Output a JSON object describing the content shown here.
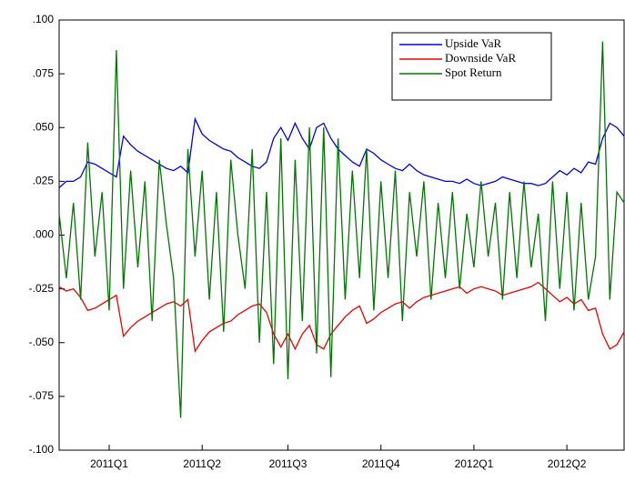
{
  "chart_data": {
    "type": "line",
    "legend": "upper right",
    "grid": false,
    "ylim": [
      -0.1,
      0.1
    ],
    "yticks": [
      {
        "value": -0.1,
        "label": "-.100"
      },
      {
        "value": -0.075,
        "label": "-.075"
      },
      {
        "value": -0.05,
        "label": "-.050"
      },
      {
        "value": -0.025,
        "label": "-.025"
      },
      {
        "value": 0,
        "label": ".000"
      },
      {
        "value": 0.025,
        "label": ".025"
      },
      {
        "value": 0.05,
        "label": ".050"
      },
      {
        "value": 0.075,
        "label": ".075"
      },
      {
        "value": 0.1,
        "label": ".100"
      }
    ],
    "categories": [
      null,
      null,
      null,
      null,
      null,
      null,
      null,
      "2011Q1",
      null,
      null,
      null,
      null,
      null,
      null,
      null,
      null,
      null,
      null,
      null,
      null,
      "2011Q2",
      null,
      null,
      null,
      null,
      null,
      null,
      null,
      null,
      null,
      null,
      null,
      "2011Q3",
      null,
      null,
      null,
      null,
      null,
      null,
      null,
      null,
      null,
      null,
      null,
      null,
      "2011Q4",
      null,
      null,
      null,
      null,
      null,
      null,
      null,
      null,
      null,
      null,
      null,
      null,
      "2012Q1",
      null,
      null,
      null,
      null,
      null,
      null,
      null,
      null,
      null,
      null,
      null,
      null,
      "2012Q2",
      null,
      null,
      null,
      null,
      null,
      null,
      null,
      null
    ],
    "series": [
      {
        "name": "Upside VaR",
        "color": "#0000ee",
        "values": [
          0.022,
          0.025,
          0.025,
          0.027,
          0.034,
          0.033,
          0.031,
          0.029,
          0.027,
          0.046,
          0.042,
          0.039,
          0.037,
          0.035,
          0.033,
          0.031,
          0.03,
          0.032,
          0.029,
          0.054,
          0.047,
          0.044,
          0.042,
          0.04,
          0.039,
          0.036,
          0.034,
          0.032,
          0.031,
          0.034,
          0.045,
          0.05,
          0.044,
          0.052,
          0.045,
          0.04,
          0.05,
          0.052,
          0.045,
          0.04,
          0.037,
          0.034,
          0.032,
          0.04,
          0.038,
          0.035,
          0.033,
          0.031,
          0.03,
          0.033,
          0.03,
          0.028,
          0.027,
          0.026,
          0.025,
          0.025,
          0.024,
          0.026,
          0.024,
          0.023,
          0.024,
          0.025,
          0.027,
          0.026,
          0.025,
          0.024,
          0.024,
          0.023,
          0.024,
          0.027,
          0.03,
          0.028,
          0.031,
          0.029,
          0.034,
          0.033,
          0.045,
          0.052,
          0.05,
          0.046
        ]
      },
      {
        "name": "Downside VaR",
        "color": "#ee0000",
        "values": [
          -0.024,
          -0.026,
          -0.025,
          -0.029,
          -0.035,
          -0.034,
          -0.032,
          -0.03,
          -0.028,
          -0.047,
          -0.043,
          -0.04,
          -0.038,
          -0.036,
          -0.034,
          -0.032,
          -0.031,
          -0.033,
          -0.03,
          -0.054,
          -0.049,
          -0.045,
          -0.043,
          -0.041,
          -0.04,
          -0.037,
          -0.035,
          -0.033,
          -0.032,
          -0.036,
          -0.046,
          -0.052,
          -0.046,
          -0.053,
          -0.046,
          -0.042,
          -0.051,
          -0.053,
          -0.046,
          -0.042,
          -0.038,
          -0.035,
          -0.033,
          -0.041,
          -0.039,
          -0.036,
          -0.034,
          -0.032,
          -0.031,
          -0.034,
          -0.031,
          -0.029,
          -0.028,
          -0.027,
          -0.026,
          -0.025,
          -0.024,
          -0.027,
          -0.025,
          -0.024,
          -0.025,
          -0.026,
          -0.028,
          -0.027,
          -0.026,
          -0.025,
          -0.024,
          -0.022,
          -0.025,
          -0.028,
          -0.031,
          -0.029,
          -0.032,
          -0.03,
          -0.035,
          -0.034,
          -0.046,
          -0.053,
          -0.051,
          -0.045
        ]
      },
      {
        "name": "Spot Return",
        "color": "#007700",
        "values": [
          0.01,
          -0.02,
          0.015,
          -0.03,
          0.043,
          -0.01,
          0.02,
          -0.035,
          0.086,
          -0.025,
          0.03,
          -0.015,
          0.025,
          -0.04,
          0.035,
          0.005,
          -0.02,
          -0.085,
          0.04,
          -0.01,
          0.03,
          -0.03,
          0.02,
          -0.045,
          0.035,
          0,
          -0.025,
          0.04,
          -0.05,
          0.02,
          -0.06,
          0.045,
          -0.067,
          0.035,
          -0.04,
          0.05,
          -0.055,
          0.05,
          -0.066,
          0.045,
          -0.03,
          0.03,
          -0.02,
          0.04,
          -0.035,
          0.025,
          -0.02,
          0.03,
          -0.04,
          0.02,
          -0.01,
          0.025,
          -0.03,
          0.015,
          -0.02,
          0.02,
          -0.025,
          0.01,
          -0.015,
          0.025,
          -0.01,
          0.015,
          -0.03,
          0.02,
          -0.02,
          0.025,
          -0.015,
          0.01,
          -0.04,
          0.025,
          -0.025,
          0.02,
          -0.035,
          0.015,
          -0.03,
          -0.01,
          0.09,
          -0.03,
          0.02,
          0.015
        ]
      }
    ]
  }
}
